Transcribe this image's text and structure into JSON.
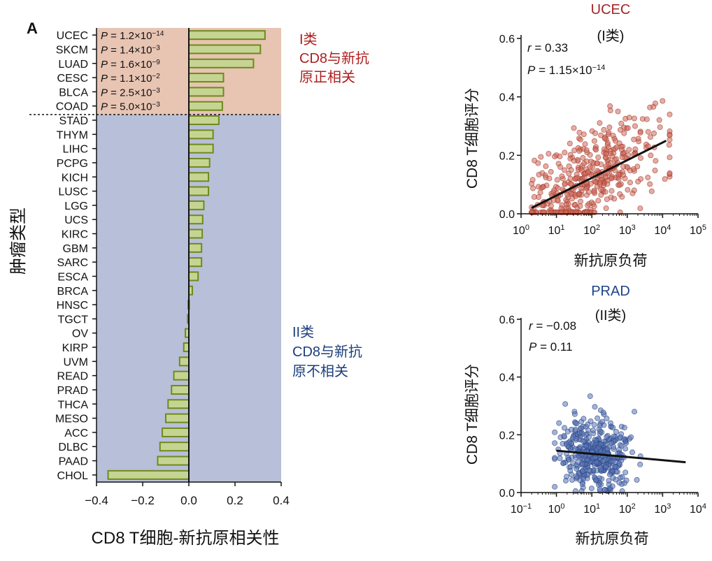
{
  "panel_label": "A",
  "chart_data": [
    {
      "type": "bar",
      "orientation": "horizontal",
      "xlabel": "CD8 T细胞-新抗原相关性",
      "ylabel": "肿瘤类型",
      "xlim": [
        -0.4,
        0.4
      ],
      "xticks": [
        "−0.4",
        "−0.2",
        "0.0",
        "0.2",
        "0.4"
      ],
      "categories": [
        "UCEC",
        "SKCM",
        "LUAD",
        "CESC",
        "BLCA",
        "COAD",
        "STAD",
        "THYM",
        "LIHC",
        "PCPG",
        "KICH",
        "LUSC",
        "LGG",
        "UCS",
        "KIRC",
        "GBM",
        "SARC",
        "ESCA",
        "BRCA",
        "HNSC",
        "TGCT",
        "OV",
        "KIRP",
        "UVM",
        "READ",
        "PRAD",
        "THCA",
        "MESO",
        "ACC",
        "DLBC",
        "PAAD",
        "CHOL"
      ],
      "values": [
        0.33,
        0.31,
        0.28,
        0.15,
        0.15,
        0.145,
        0.13,
        0.105,
        0.105,
        0.09,
        0.085,
        0.085,
        0.065,
        0.06,
        0.058,
        0.055,
        0.055,
        0.04,
        0.015,
        -0.003,
        -0.005,
        -0.015,
        -0.022,
        -0.04,
        -0.065,
        -0.075,
        -0.09,
        -0.1,
        -0.115,
        -0.125,
        -0.135,
        -0.35
      ],
      "group1_count": 6,
      "pvalues": [
        {
          "mant": "1.2",
          "exp": "−14"
        },
        {
          "mant": "1.4",
          "exp": "−3"
        },
        {
          "mant": "1.6",
          "exp": "−9"
        },
        {
          "mant": "1.1",
          "exp": "−2"
        },
        {
          "mant": "2.5",
          "exp": "−3"
        },
        {
          "mant": "5.0",
          "exp": "−3"
        }
      ],
      "groups": [
        {
          "name": "I类",
          "lines": [
            "CD8与新抗",
            "原正相关"
          ],
          "color": "#b01e1e",
          "bg": "#e8c4b3"
        },
        {
          "name": "II类",
          "lines": [
            "CD8与新抗",
            "原不相关"
          ],
          "color": "#1c3f7c",
          "bg": "#b8bfd8"
        }
      ],
      "bar_fill": "#c6d493",
      "bar_stroke": "#6e8a1c"
    },
    {
      "type": "scatter",
      "title": "UCEC",
      "subtitle": "(I类)",
      "title_color": "#a12626",
      "point_color": "#cf6a5a",
      "point_stroke": "#a23b2e",
      "xlabel": "新抗原负荷",
      "ylabel": "CD8 T细胞评分",
      "xscale": "log10",
      "xlim_exp": [
        0,
        5
      ],
      "xtick_exps": [
        "0",
        "1",
        "2",
        "3",
        "4",
        "5"
      ],
      "ylim": [
        0,
        0.6
      ],
      "yticks": [
        "0.0",
        "0.2",
        "0.4",
        "0.6"
      ],
      "r_label": "r",
      "r_value": " = 0.33",
      "p_label": "P",
      "p_mant": " = 1.15×10",
      "p_exp": "−14",
      "fit": {
        "x_exp": [
          0.3,
          4.1
        ],
        "y": [
          0.02,
          0.25
        ]
      },
      "n_points": 430,
      "seed": 7,
      "x_exp_mean": 2.0,
      "x_exp_sd": 0.95,
      "x_exp_range": [
        0.3,
        4.2
      ],
      "y_noise_sd": 0.085,
      "y_range": [
        0.0,
        0.49
      ]
    },
    {
      "type": "scatter",
      "title": "PRAD",
      "subtitle": "(II类)",
      "title_color": "#1d4488",
      "point_color": "#5a75b8",
      "point_stroke": "#28437f",
      "xlabel": "新抗原负荷",
      "ylabel": "CD8 T细胞评分",
      "xscale": "log10",
      "xlim_exp": [
        -1,
        4
      ],
      "xtick_exps": [
        "−1",
        "0",
        "1",
        "2",
        "3",
        "4"
      ],
      "ylim": [
        0,
        0.6
      ],
      "yticks": [
        "0.0",
        "0.2",
        "0.4",
        "0.6"
      ],
      "r_label": "r",
      "r_value": " = −0.08",
      "p_label": "P",
      "p_mant": " = 0.11",
      "p_exp": "",
      "fit": {
        "x_exp": [
          0.0,
          3.65
        ],
        "y": [
          0.145,
          0.105
        ]
      },
      "n_points": 420,
      "seed": 13,
      "x_exp_mean": 1.1,
      "x_exp_sd": 0.5,
      "x_exp_range": [
        -0.05,
        3.7
      ],
      "y_noise_sd": 0.06,
      "y_range": [
        0.0,
        0.44
      ]
    }
  ]
}
